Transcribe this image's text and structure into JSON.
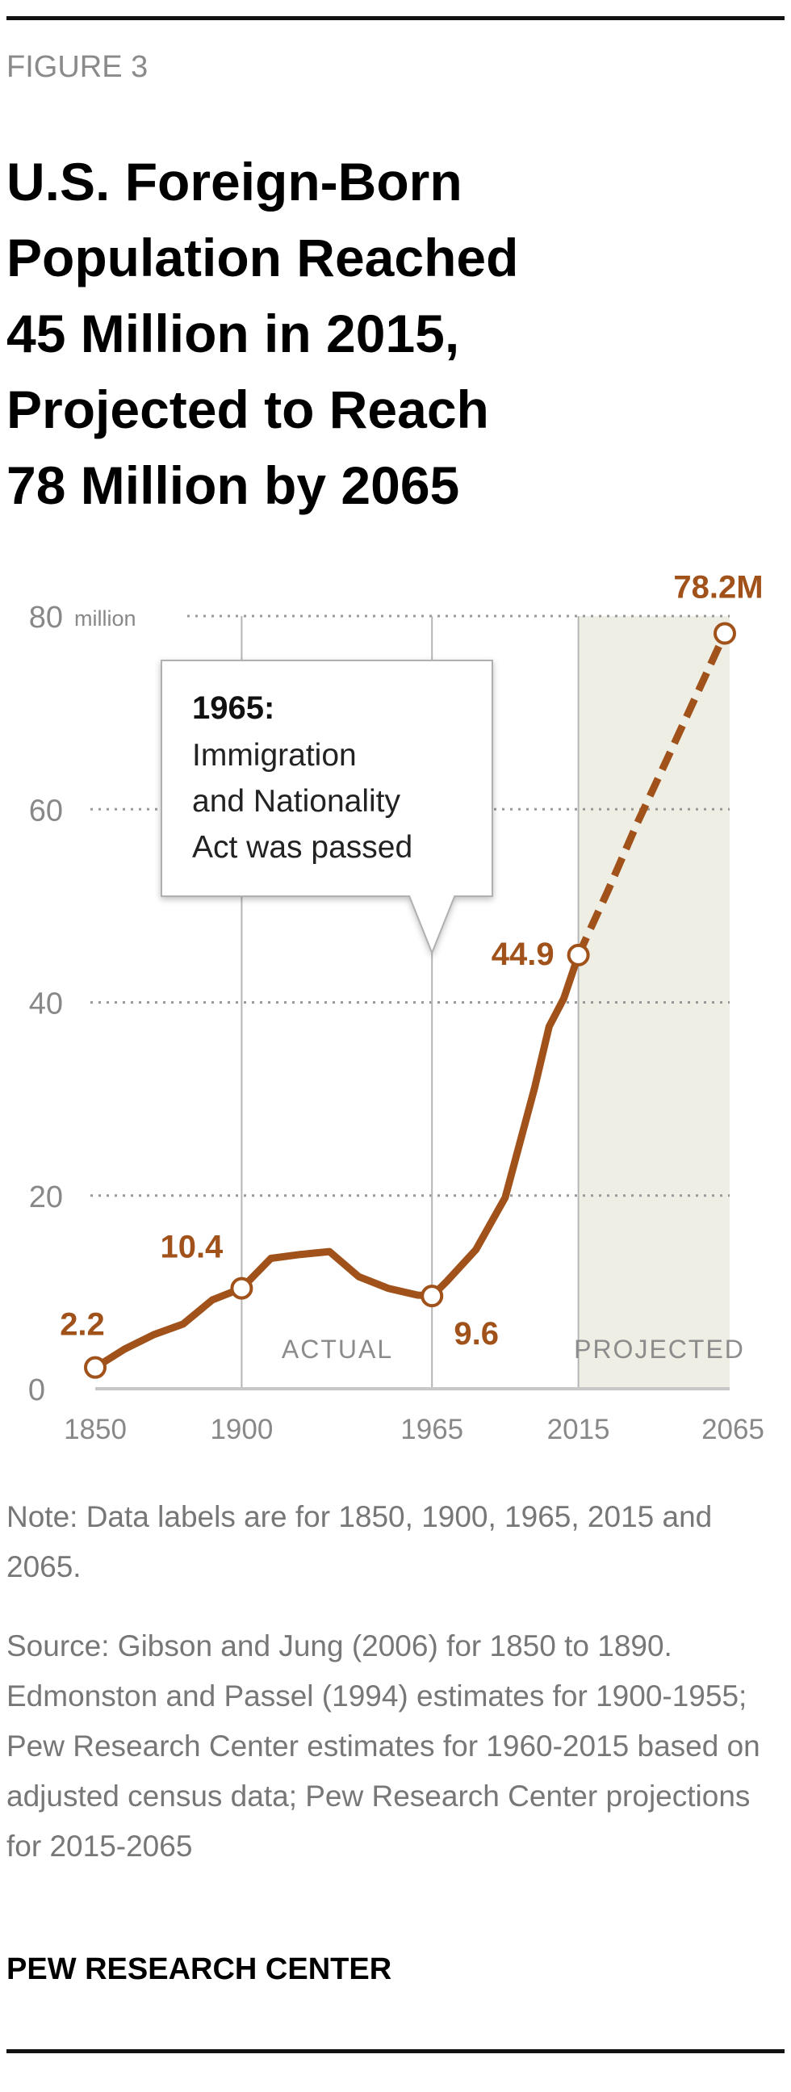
{
  "figure_label": "FIGURE 3",
  "title_lines": [
    "U.S. Foreign-Born",
    "Population Reached",
    "45 Million in 2015,",
    "Projected to Reach",
    "78 Million by 2065"
  ],
  "colors": {
    "line": "#a0521a",
    "projected_shade": "#eeeee4",
    "grid": "#999999",
    "axis_text": "#888888"
  },
  "chart_data": {
    "type": "line",
    "title": "U.S. Foreign-Born Population Reached 45 Million in 2015, Projected to Reach 78 Million by 2065",
    "xlabel": "",
    "ylabel": "million",
    "xlim": [
      1850,
      2065
    ],
    "ylim": [
      0,
      80
    ],
    "grid": true,
    "y_ticks": [
      0,
      20,
      40,
      60,
      80
    ],
    "y_tick_labels": [
      "0",
      "20",
      "40",
      "60",
      "80"
    ],
    "y_unit_label": "million",
    "x_ticks": [
      1850,
      1900,
      1965,
      2015,
      2065
    ],
    "x_tick_labels": [
      "1850",
      "1900",
      "1965",
      "2015",
      "2065"
    ],
    "series": [
      {
        "name": "Actual",
        "style": "solid",
        "x": [
          1850,
          1860,
          1870,
          1880,
          1890,
          1900,
          1910,
          1920,
          1930,
          1940,
          1950,
          1960,
          1965,
          1970,
          1980,
          1990,
          2000,
          2005,
          2010,
          2015
        ],
        "y": [
          2.2,
          4.1,
          5.6,
          6.7,
          9.2,
          10.4,
          13.5,
          13.9,
          14.2,
          11.6,
          10.4,
          9.7,
          9.6,
          11.1,
          14.4,
          19.8,
          31.1,
          37.5,
          40.4,
          44.9
        ]
      },
      {
        "name": "Projected",
        "style": "dashed",
        "x": [
          2015,
          2025,
          2035,
          2045,
          2055,
          2065
        ],
        "y": [
          44.9,
          51.5,
          58.5,
          65.0,
          71.6,
          78.2
        ]
      }
    ],
    "data_labels": [
      {
        "x": 1850,
        "y": 2.2,
        "text": "2.2"
      },
      {
        "x": 1900,
        "y": 10.4,
        "text": "10.4"
      },
      {
        "x": 1965,
        "y": 9.6,
        "text": "9.6"
      },
      {
        "x": 2015,
        "y": 44.9,
        "text": "44.9"
      },
      {
        "x": 2065,
        "y": 78.2,
        "text": "78.2M"
      }
    ],
    "regions": [
      {
        "label": "ACTUAL",
        "from": 1850,
        "to": 2015
      },
      {
        "label": "PROJECTED",
        "from": 2015,
        "to": 2065
      }
    ],
    "annotation": {
      "x": 1965,
      "heading": "1965:",
      "lines": [
        "Immigration",
        "and Nationality",
        "Act was passed"
      ]
    }
  },
  "note": "Note: Data labels are for 1850, 1900, 1965, 2015 and 2065.",
  "source": "Source: Gibson and Jung (2006) for 1850 to 1890. Edmonston and Passel (1994) estimates for 1900-1955; Pew Research Center estimates for 1960-2015 based on adjusted census data; Pew Research Center projections for 2015-2065",
  "footer": "PEW RESEARCH CENTER"
}
